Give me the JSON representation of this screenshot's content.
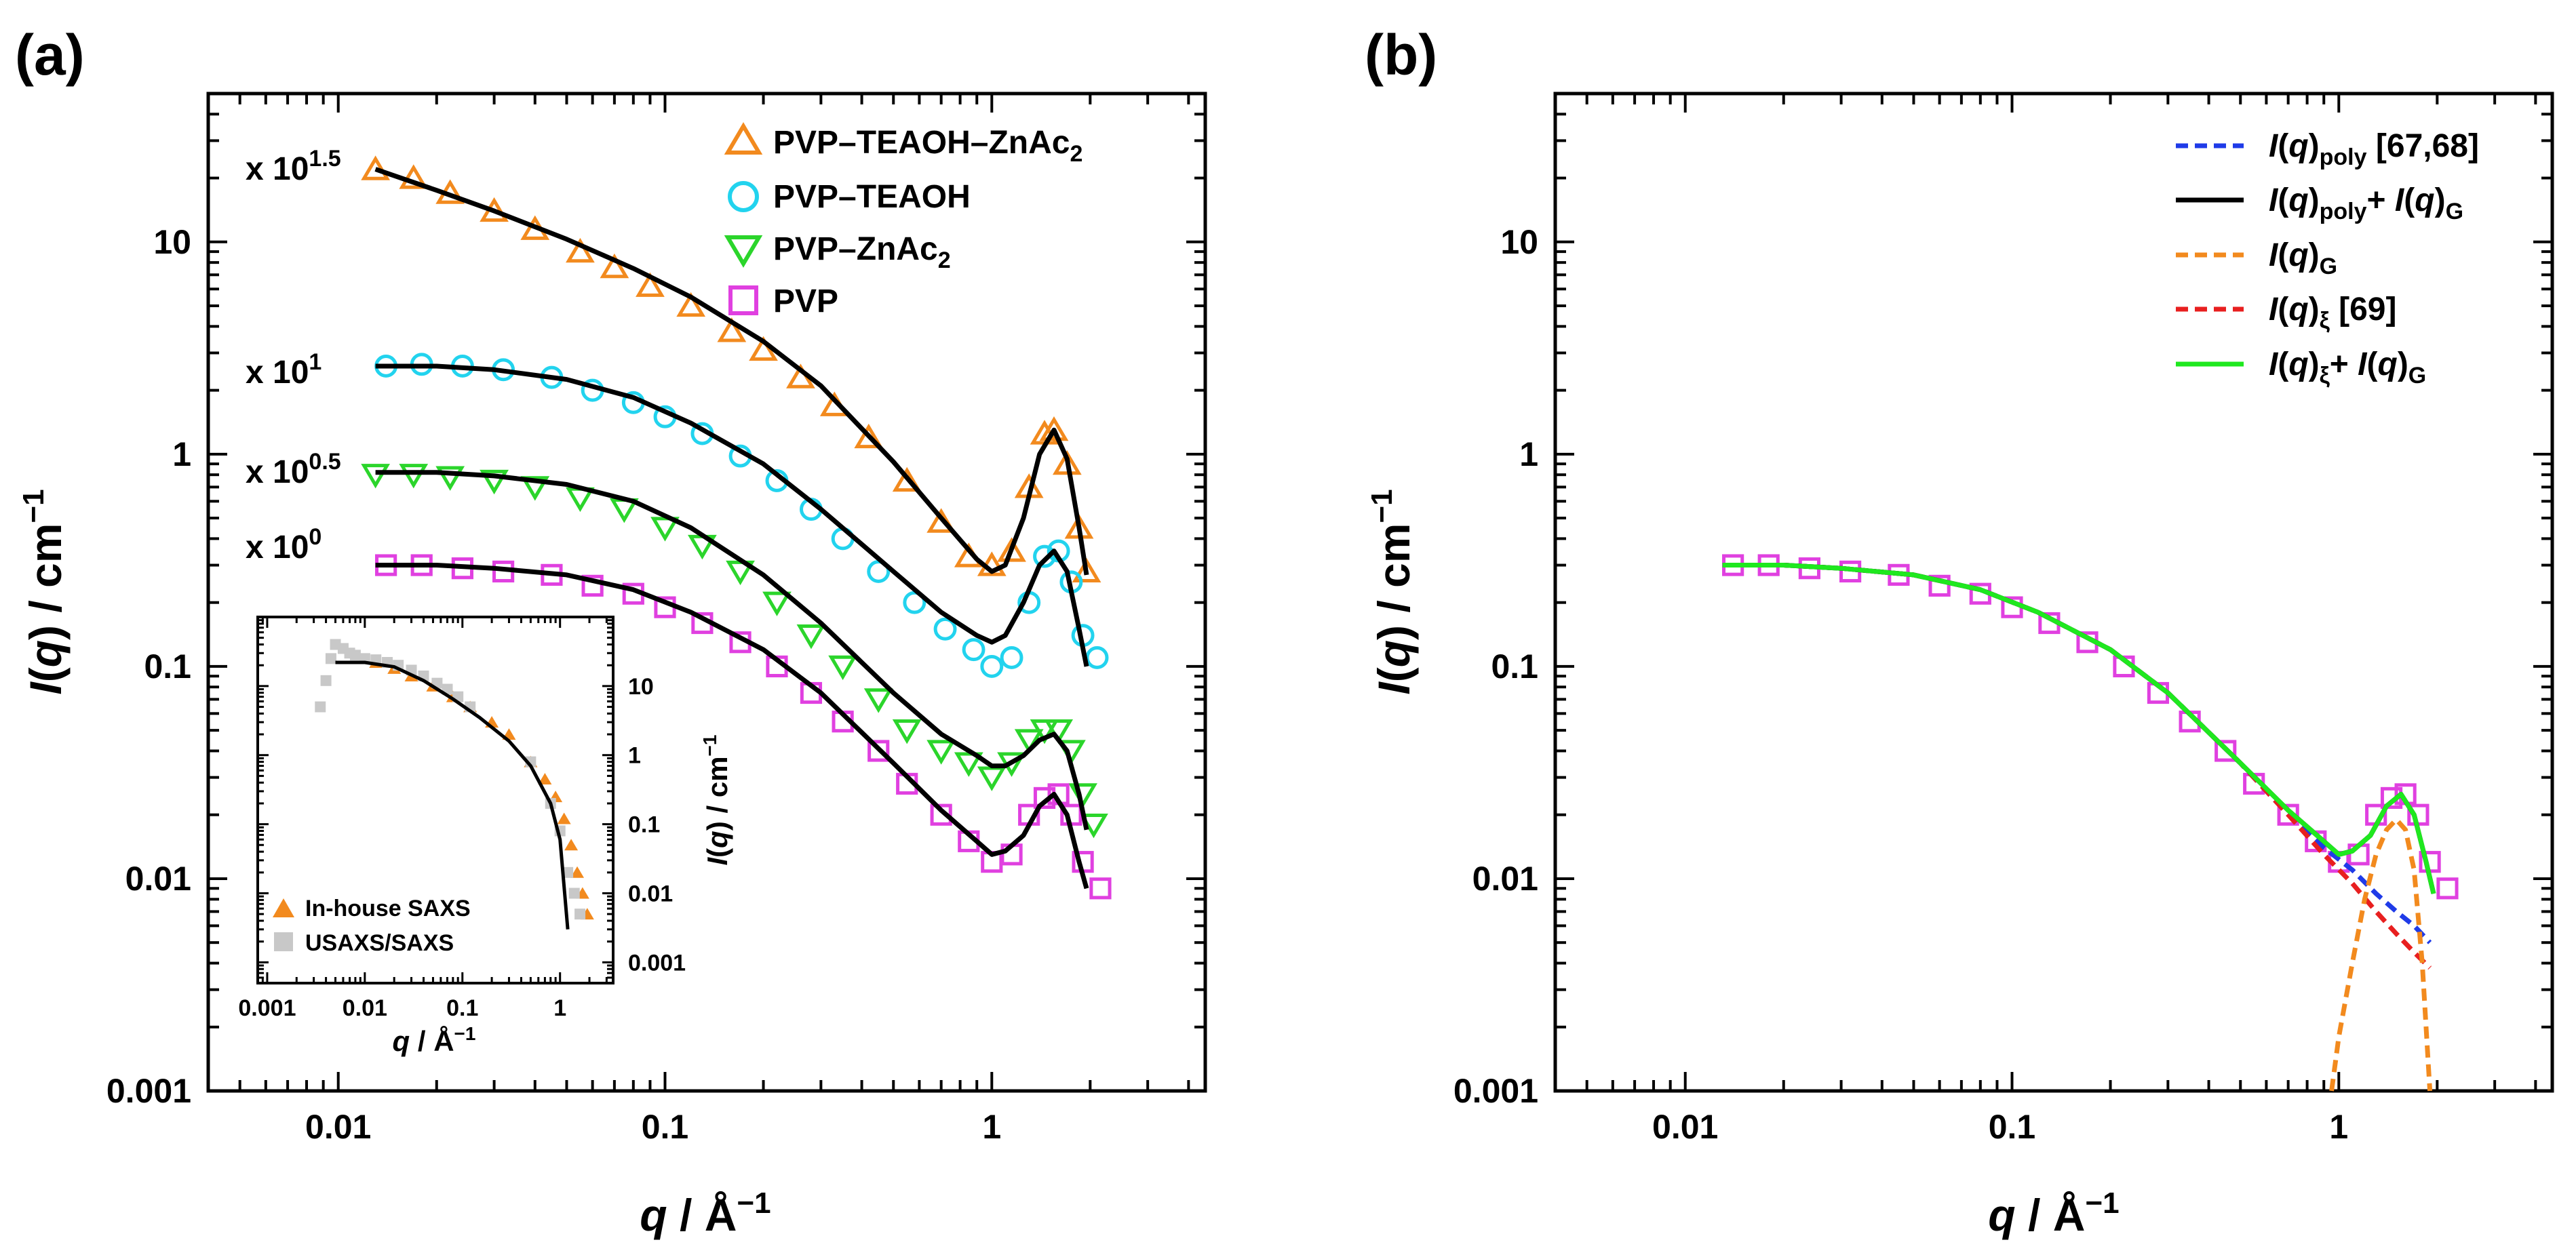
{
  "panels": {
    "a": {
      "label": "(a)",
      "xlabel": "q / Å⁻¹",
      "ylabel": "I(q) / cm⁻¹",
      "x_ticks": [
        "0.01",
        "0.1",
        "1"
      ],
      "y_ticks": [
        "0.001",
        "0.01",
        "0.1",
        "1",
        "10"
      ],
      "annotations": [
        {
          "base": "x 10",
          "exp": "1.5"
        },
        {
          "base": "x 10",
          "exp": "1"
        },
        {
          "base": "x 10",
          "exp": "0.5"
        },
        {
          "base": "x 10",
          "exp": "0"
        }
      ],
      "legend": [
        {
          "text": "PVP–TEAOH–ZnAc",
          "sub": "2",
          "marker": "triangle-up",
          "color": "#F28A1E"
        },
        {
          "text": "PVP–TEAOH",
          "sub": "",
          "marker": "circle",
          "color": "#22D3EE"
        },
        {
          "text": "PVP–ZnAc",
          "sub": "2",
          "marker": "triangle-down",
          "color": "#2BD52B"
        },
        {
          "text": "PVP",
          "sub": "",
          "marker": "square",
          "color": "#E040E0"
        }
      ],
      "inset": {
        "xlabel": "q / Å⁻¹",
        "ylabel": "I(q) / cm⁻¹",
        "x_ticks": [
          "0.001",
          "0.01",
          "0.1",
          "1"
        ],
        "y_ticks": [
          "0.001",
          "0.01",
          "0.1",
          "1",
          "10"
        ],
        "legend": [
          {
            "text": "In-house SAXS",
            "marker": "triangle-filled",
            "color": "#F28A1E"
          },
          {
            "text": "USAXS/SAXS",
            "marker": "square-filled",
            "color": "#C8C8C8"
          }
        ]
      }
    },
    "b": {
      "label": "(b)",
      "xlabel": "q / Å⁻¹",
      "ylabel": "I(q) / cm⁻¹",
      "x_ticks": [
        "0.01",
        "0.1",
        "1"
      ],
      "y_ticks": [
        "0.001",
        "0.01",
        "0.1",
        "1",
        "10"
      ],
      "legend": [
        {
          "id": "poly",
          "color": "#1F3BE8",
          "dash": true
        },
        {
          "id": "polyG",
          "color": "#000000",
          "dash": false
        },
        {
          "id": "G",
          "color": "#F28A1E",
          "dash": true
        },
        {
          "id": "xi",
          "color": "#E81F1F",
          "dash": true
        },
        {
          "id": "xiG",
          "color": "#1FE81F",
          "dash": false
        }
      ],
      "legend_text": {
        "poly": {
          "pre": "I(q)",
          "sub": "poly",
          "post": " [67,68]"
        },
        "polyG": {
          "pre": "I(q)",
          "sub": "poly",
          "post": "+ I(q)",
          "sub2": "G"
        },
        "G": {
          "pre": "I(q)",
          "sub": "G"
        },
        "xi": {
          "pre": "I(q)",
          "sub": "ξ",
          "post": " [69]"
        },
        "xiG": {
          "pre": "I(q)",
          "sub": "ξ",
          "post": "+ I(q)",
          "sub2": "G"
        }
      }
    }
  },
  "chart_data": [
    {
      "type": "scatter",
      "panel": "a",
      "x_scale": "log",
      "y_scale": "log",
      "xlim": [
        0.004,
        4.5
      ],
      "ylim": [
        0.001,
        50
      ],
      "series": [
        {
          "name": "PVP–TEAOH–ZnAc2",
          "marker": "triangle-up",
          "color": "#F28A1E",
          "x": [
            0.013,
            0.017,
            0.022,
            0.03,
            0.04,
            0.055,
            0.07,
            0.09,
            0.12,
            0.16,
            0.2,
            0.26,
            0.33,
            0.42,
            0.55,
            0.7,
            0.85,
            1.0,
            1.15,
            1.3,
            1.45,
            1.55,
            1.7,
            1.85,
            1.95
          ],
          "y": [
            22,
            20,
            17,
            14,
            11.5,
            9,
            7.6,
            6.2,
            5,
            3.8,
            3.1,
            2.3,
            1.7,
            1.2,
            0.75,
            0.48,
            0.33,
            0.3,
            0.35,
            0.7,
            1.25,
            1.3,
            0.9,
            0.45,
            0.28
          ]
        },
        {
          "name": "PVP–TEAOH",
          "marker": "circle",
          "color": "#22D3EE",
          "x": [
            0.014,
            0.018,
            0.024,
            0.032,
            0.045,
            0.06,
            0.08,
            0.1,
            0.13,
            0.17,
            0.22,
            0.28,
            0.35,
            0.45,
            0.58,
            0.72,
            0.88,
            1.0,
            1.15,
            1.3,
            1.45,
            1.6,
            1.75,
            1.9,
            2.1
          ],
          "y": [
            2.6,
            2.65,
            2.6,
            2.5,
            2.3,
            2.0,
            1.75,
            1.5,
            1.25,
            0.98,
            0.75,
            0.55,
            0.4,
            0.28,
            0.2,
            0.15,
            0.12,
            0.1,
            0.11,
            0.2,
            0.33,
            0.35,
            0.25,
            0.14,
            0.11
          ]
        },
        {
          "name": "PVP–ZnAc2",
          "marker": "triangle-down",
          "color": "#2BD52B",
          "x": [
            0.013,
            0.017,
            0.022,
            0.03,
            0.04,
            0.055,
            0.075,
            0.1,
            0.13,
            0.17,
            0.22,
            0.28,
            0.35,
            0.45,
            0.55,
            0.7,
            0.85,
            1.0,
            1.15,
            1.3,
            1.45,
            1.6,
            1.75,
            1.9,
            2.05
          ],
          "y": [
            0.8,
            0.8,
            0.78,
            0.75,
            0.7,
            0.62,
            0.55,
            0.45,
            0.37,
            0.28,
            0.2,
            0.14,
            0.1,
            0.07,
            0.05,
            0.04,
            0.035,
            0.03,
            0.035,
            0.045,
            0.05,
            0.05,
            0.04,
            0.025,
            0.018
          ]
        },
        {
          "name": "PVP",
          "marker": "square",
          "color": "#E040E0",
          "x": [
            0.014,
            0.018,
            0.024,
            0.032,
            0.045,
            0.06,
            0.08,
            0.1,
            0.13,
            0.17,
            0.22,
            0.28,
            0.35,
            0.45,
            0.55,
            0.7,
            0.85,
            1.0,
            1.15,
            1.3,
            1.45,
            1.6,
            1.75,
            1.9,
            2.15
          ],
          "y": [
            0.3,
            0.3,
            0.29,
            0.28,
            0.27,
            0.24,
            0.22,
            0.19,
            0.16,
            0.13,
            0.1,
            0.075,
            0.055,
            0.04,
            0.028,
            0.02,
            0.015,
            0.012,
            0.013,
            0.02,
            0.024,
            0.025,
            0.02,
            0.012,
            0.009
          ]
        }
      ],
      "fits": [
        {
          "x": [
            0.013,
            0.02,
            0.03,
            0.05,
            0.08,
            0.12,
            0.2,
            0.3,
            0.5,
            0.7,
            0.9,
            1.0,
            1.1,
            1.25,
            1.4,
            1.55,
            1.7,
            1.85,
            1.95
          ],
          "y": [
            22,
            17.5,
            14,
            10.3,
            7.5,
            5.5,
            3.4,
            2.1,
            0.92,
            0.5,
            0.32,
            0.28,
            0.3,
            0.5,
            1.0,
            1.3,
            0.95,
            0.45,
            0.27
          ]
        },
        {
          "x": [
            0.013,
            0.02,
            0.03,
            0.05,
            0.08,
            0.12,
            0.2,
            0.3,
            0.5,
            0.7,
            0.9,
            1.0,
            1.1,
            1.25,
            1.4,
            1.55,
            1.7,
            1.85,
            1.95
          ],
          "y": [
            2.6,
            2.6,
            2.5,
            2.25,
            1.85,
            1.4,
            0.9,
            0.55,
            0.28,
            0.18,
            0.14,
            0.13,
            0.14,
            0.2,
            0.3,
            0.35,
            0.28,
            0.15,
            0.1
          ]
        },
        {
          "x": [
            0.013,
            0.02,
            0.03,
            0.05,
            0.08,
            0.12,
            0.2,
            0.3,
            0.5,
            0.7,
            0.9,
            1.0,
            1.1,
            1.25,
            1.4,
            1.55,
            1.7,
            1.85,
            1.95
          ],
          "y": [
            0.82,
            0.82,
            0.79,
            0.72,
            0.6,
            0.45,
            0.27,
            0.16,
            0.075,
            0.048,
            0.038,
            0.034,
            0.034,
            0.038,
            0.045,
            0.048,
            0.04,
            0.025,
            0.017
          ]
        },
        {
          "x": [
            0.013,
            0.02,
            0.03,
            0.05,
            0.08,
            0.12,
            0.2,
            0.3,
            0.5,
            0.7,
            0.9,
            1.0,
            1.1,
            1.25,
            1.4,
            1.55,
            1.7,
            1.85,
            1.95
          ],
          "y": [
            0.3,
            0.3,
            0.29,
            0.27,
            0.23,
            0.18,
            0.12,
            0.075,
            0.035,
            0.021,
            0.015,
            0.013,
            0.0135,
            0.016,
            0.022,
            0.025,
            0.02,
            0.012,
            0.009
          ]
        }
      ],
      "inset": {
        "type": "scatter",
        "x_scale": "log",
        "y_scale": "log",
        "xlim": [
          0.0008,
          3.5
        ],
        "ylim": [
          0.0005,
          100
        ],
        "series": [
          {
            "name": "In-house SAXS",
            "color": "#F28A1E",
            "x": [
              0.013,
              0.02,
              0.03,
              0.05,
              0.08,
              0.12,
              0.2,
              0.3,
              0.5,
              0.7,
              0.9,
              1.1,
              1.3,
              1.5,
              1.7,
              1.9
            ],
            "y": [
              22,
              18,
              14,
              10,
              7,
              5,
              3,
              2,
              0.8,
              0.45,
              0.25,
              0.12,
              0.05,
              0.02,
              0.01,
              0.005
            ]
          },
          {
            "name": "USAXS/SAXS",
            "color": "#C8C8C8",
            "x": [
              0.0035,
              0.004,
              0.0045,
              0.005,
              0.006,
              0.007,
              0.008,
              0.01,
              0.013,
              0.017,
              0.022,
              0.03,
              0.04,
              0.055,
              0.07,
              0.09,
              0.12,
              0.5,
              0.8,
              1.0,
              1.2,
              1.4,
              1.6
            ],
            "y": [
              5,
              12,
              25,
              40,
              35,
              30,
              28,
              25,
              24,
              22,
              20,
              17,
              14,
              11,
              9,
              7,
              5,
              0.8,
              0.2,
              0.08,
              0.02,
              0.01,
              0.005
            ]
          }
        ],
        "fit": {
          "x": [
            0.005,
            0.01,
            0.02,
            0.04,
            0.08,
            0.15,
            0.3,
            0.5,
            0.8,
            1.0,
            1.2
          ],
          "y": [
            22,
            22,
            19,
            12,
            6.5,
            3.5,
            1.6,
            0.7,
            0.2,
            0.06,
            0.003
          ]
        }
      }
    },
    {
      "type": "line",
      "panel": "b",
      "x_scale": "log",
      "y_scale": "log",
      "xlim": [
        0.004,
        4.5
      ],
      "ylim": [
        0.001,
        50
      ],
      "series": [
        {
          "name": "PVP",
          "marker": "square",
          "color": "#E040E0",
          "x": [
            0.014,
            0.018,
            0.024,
            0.032,
            0.045,
            0.06,
            0.08,
            0.1,
            0.13,
            0.17,
            0.22,
            0.28,
            0.35,
            0.45,
            0.55,
            0.7,
            0.85,
            1.0,
            1.15,
            1.3,
            1.45,
            1.6,
            1.75,
            1.9,
            2.15
          ],
          "y": [
            0.3,
            0.3,
            0.29,
            0.28,
            0.27,
            0.24,
            0.22,
            0.19,
            0.16,
            0.13,
            0.1,
            0.075,
            0.055,
            0.04,
            0.028,
            0.02,
            0.015,
            0.012,
            0.013,
            0.02,
            0.024,
            0.025,
            0.02,
            0.012,
            0.009
          ]
        }
      ],
      "curves": [
        {
          "id": "poly",
          "x": [
            0.013,
            0.02,
            0.03,
            0.05,
            0.08,
            0.12,
            0.2,
            0.3,
            0.5,
            0.7,
            0.9,
            1.1,
            1.3,
            1.5,
            1.7,
            1.9
          ],
          "y": [
            0.3,
            0.3,
            0.29,
            0.27,
            0.23,
            0.18,
            0.12,
            0.075,
            0.035,
            0.02,
            0.014,
            0.011,
            0.0085,
            0.007,
            0.006,
            0.005
          ]
        },
        {
          "id": "xi",
          "x": [
            0.013,
            0.02,
            0.03,
            0.05,
            0.08,
            0.12,
            0.2,
            0.3,
            0.5,
            0.7,
            0.9,
            1.1,
            1.3,
            1.5,
            1.7,
            1.9
          ],
          "y": [
            0.3,
            0.3,
            0.29,
            0.27,
            0.23,
            0.18,
            0.12,
            0.075,
            0.035,
            0.02,
            0.013,
            0.0095,
            0.007,
            0.0055,
            0.0045,
            0.0038
          ]
        },
        {
          "id": "G",
          "x": [
            0.95,
            1.0,
            1.1,
            1.2,
            1.3,
            1.4,
            1.5,
            1.6,
            1.7,
            1.8,
            1.9
          ],
          "y": [
            0.001,
            0.0018,
            0.004,
            0.008,
            0.013,
            0.017,
            0.019,
            0.017,
            0.011,
            0.004,
            0.001
          ]
        },
        {
          "id": "polyG",
          "x": [
            0.013,
            0.02,
            0.03,
            0.05,
            0.08,
            0.12,
            0.2,
            0.3,
            0.5,
            0.7,
            0.9,
            1.0,
            1.1,
            1.25,
            1.4,
            1.55,
            1.7,
            1.85,
            1.95
          ],
          "y": [
            0.3,
            0.3,
            0.29,
            0.27,
            0.23,
            0.18,
            0.12,
            0.075,
            0.035,
            0.021,
            0.015,
            0.013,
            0.0135,
            0.016,
            0.022,
            0.025,
            0.02,
            0.012,
            0.0085
          ]
        },
        {
          "id": "xiG",
          "x": [
            0.013,
            0.02,
            0.03,
            0.05,
            0.08,
            0.12,
            0.2,
            0.3,
            0.5,
            0.7,
            0.9,
            1.0,
            1.1,
            1.25,
            1.4,
            1.55,
            1.7,
            1.85,
            1.95
          ],
          "y": [
            0.3,
            0.3,
            0.29,
            0.27,
            0.23,
            0.18,
            0.12,
            0.075,
            0.035,
            0.021,
            0.015,
            0.013,
            0.0135,
            0.016,
            0.022,
            0.025,
            0.02,
            0.012,
            0.0085
          ]
        }
      ]
    }
  ]
}
